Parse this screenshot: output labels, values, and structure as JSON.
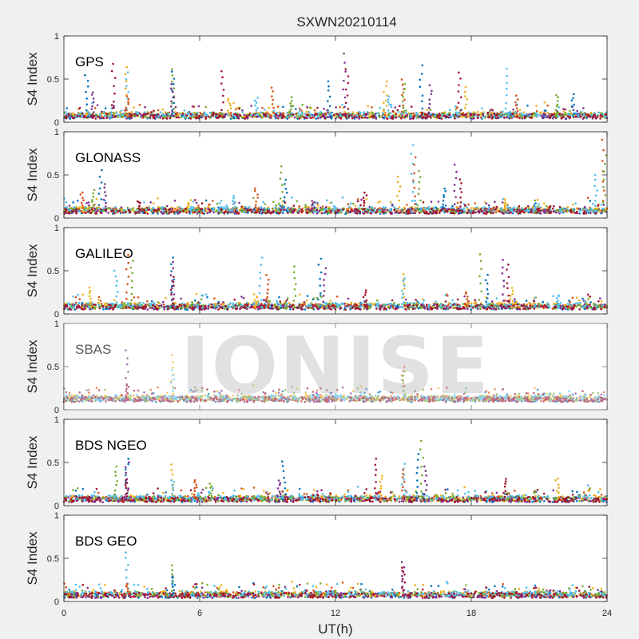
{
  "figure": {
    "title": "SXWN20210114",
    "xlabel": "UT(h)",
    "watermark": "IONISE"
  },
  "chart_data": [
    {
      "type": "scatter",
      "panel_label": "GPS",
      "ylabel": "S4 Index",
      "xlim": [
        0,
        24
      ],
      "ylim": [
        0,
        1
      ],
      "yticks": [
        0,
        0.5,
        1
      ],
      "xticks": [
        0,
        6,
        12,
        18,
        24
      ],
      "baseline": 0.07,
      "spikes": [
        [
          1,
          0.55
        ],
        [
          1.3,
          0.35
        ],
        [
          2.2,
          0.68
        ],
        [
          2.8,
          0.64
        ],
        [
          2.8,
          0.57
        ],
        [
          2.8,
          0.3
        ],
        [
          4.8,
          0.62
        ],
        [
          4.8,
          0.58
        ],
        [
          4.8,
          0.45
        ],
        [
          7,
          0.6
        ],
        [
          7.3,
          0.28
        ],
        [
          8.5,
          0.28
        ],
        [
          9.2,
          0.4
        ],
        [
          10,
          0.28
        ],
        [
          11.7,
          0.48
        ],
        [
          12.4,
          0.8
        ],
        [
          12.5,
          0.62
        ],
        [
          14.2,
          0.48
        ],
        [
          14.4,
          0.3
        ],
        [
          15,
          0.5
        ],
        [
          15,
          0.45
        ],
        [
          15.8,
          0.65
        ],
        [
          16.2,
          0.42
        ],
        [
          17.5,
          0.58
        ],
        [
          17.8,
          0.4
        ],
        [
          19.5,
          0.62
        ],
        [
          20,
          0.3
        ],
        [
          21.8,
          0.32
        ],
        [
          22.5,
          0.32
        ]
      ],
      "xtick_labels_visible": false
    },
    {
      "type": "scatter",
      "panel_label": "GLONASS",
      "ylabel": "S4 Index",
      "xlim": [
        0,
        24
      ],
      "ylim": [
        0,
        1
      ],
      "yticks": [
        0,
        0.5,
        1
      ],
      "xticks": [
        0,
        6,
        12,
        18,
        24
      ],
      "baseline": 0.08,
      "spikes": [
        [
          0.8,
          0.3
        ],
        [
          1.3,
          0.32
        ],
        [
          1.6,
          0.55
        ],
        [
          1.8,
          0.4
        ],
        [
          3.3,
          0.2
        ],
        [
          5.5,
          0.18
        ],
        [
          7.5,
          0.25
        ],
        [
          8.5,
          0.35
        ],
        [
          9.6,
          0.6
        ],
        [
          9.8,
          0.45
        ],
        [
          11,
          0.2
        ],
        [
          13.3,
          0.3
        ],
        [
          14.8,
          0.48
        ],
        [
          15.4,
          0.85
        ],
        [
          15.5,
          0.7
        ],
        [
          15.7,
          0.55
        ],
        [
          16.8,
          0.35
        ],
        [
          17.3,
          0.62
        ],
        [
          17.5,
          0.45
        ],
        [
          19.5,
          0.22
        ],
        [
          23.5,
          0.5
        ],
        [
          23.8,
          0.9
        ],
        [
          23.9,
          0.72
        ]
      ],
      "xtick_labels_visible": false
    },
    {
      "type": "scatter",
      "panel_label": "GALILEO",
      "ylabel": "S4 Index",
      "xlim": [
        0,
        24
      ],
      "ylim": [
        0,
        1
      ],
      "yticks": [
        0,
        0.5,
        1
      ],
      "xticks": [
        0,
        6,
        12,
        18,
        24
      ],
      "baseline": 0.08,
      "spikes": [
        [
          1.2,
          0.3
        ],
        [
          2.3,
          0.5
        ],
        [
          2.8,
          0.68
        ],
        [
          3,
          0.62
        ],
        [
          4.8,
          0.65
        ],
        [
          4.8,
          0.6
        ],
        [
          4.8,
          0.42
        ],
        [
          8.5,
          0.2
        ],
        [
          8.7,
          0.65
        ],
        [
          9,
          0.45
        ],
        [
          10.2,
          0.55
        ],
        [
          11.3,
          0.65
        ],
        [
          11.5,
          0.52
        ],
        [
          13.3,
          0.28
        ],
        [
          15,
          0.45
        ],
        [
          15,
          0.42
        ],
        [
          17.8,
          0.25
        ],
        [
          18.4,
          0.7
        ],
        [
          18.7,
          0.45
        ],
        [
          19.4,
          0.62
        ],
        [
          19.6,
          0.58
        ],
        [
          19.8,
          0.3
        ],
        [
          21.8,
          0.22
        ]
      ],
      "xtick_labels_visible": false
    },
    {
      "type": "scatter",
      "panel_label": "SBAS",
      "ylabel": "S4 Index",
      "xlim": [
        0,
        24
      ],
      "ylim": [
        0,
        1
      ],
      "yticks": [
        0,
        0.5,
        1
      ],
      "xticks": [
        0,
        6,
        12,
        18,
        24
      ],
      "baseline": 0.12,
      "spikes": [
        [
          2.8,
          0.68
        ],
        [
          2.8,
          0.3
        ],
        [
          4.8,
          0.63
        ],
        [
          4.8,
          0.45
        ],
        [
          15,
          0.5
        ],
        [
          15,
          0.45
        ]
      ],
      "xtick_labels_visible": false
    },
    {
      "type": "scatter",
      "panel_label": "BDS NGEO",
      "ylabel": "S4 Index",
      "xlim": [
        0,
        24
      ],
      "ylim": [
        0,
        1
      ],
      "yticks": [
        0,
        0.5,
        1
      ],
      "xticks": [
        0,
        6,
        12,
        18,
        24
      ],
      "baseline": 0.07,
      "spikes": [
        [
          2.3,
          0.45
        ],
        [
          2.8,
          0.55
        ],
        [
          2.8,
          0.5
        ],
        [
          2.8,
          0.3
        ],
        [
          4.8,
          0.48
        ],
        [
          4.8,
          0.3
        ],
        [
          5.8,
          0.3
        ],
        [
          6.5,
          0.25
        ],
        [
          9.7,
          0.52
        ],
        [
          9.5,
          0.3
        ],
        [
          13.8,
          0.55
        ],
        [
          14,
          0.35
        ],
        [
          15,
          0.48
        ],
        [
          15,
          0.42
        ],
        [
          15.8,
          0.75
        ],
        [
          15.6,
          0.6
        ],
        [
          16,
          0.45
        ],
        [
          19.5,
          0.32
        ],
        [
          21.8,
          0.32
        ]
      ],
      "xtick_labels_visible": false
    },
    {
      "type": "scatter",
      "panel_label": "BDS GEO",
      "ylabel": "S4 Index",
      "xlim": [
        0,
        24
      ],
      "ylim": [
        0,
        1
      ],
      "yticks": [
        0,
        0.5,
        1
      ],
      "xticks": [
        0,
        6,
        12,
        18,
        24
      ],
      "baseline": 0.07,
      "spikes": [
        [
          2.8,
          0.57
        ],
        [
          2.8,
          0.2
        ],
        [
          4.8,
          0.42
        ],
        [
          4.8,
          0.3
        ],
        [
          15,
          0.45
        ],
        [
          15,
          0.4
        ]
      ],
      "xtick_labels_visible": true,
      "xtick_labels": [
        "0",
        "6",
        "12",
        "18",
        "24"
      ]
    }
  ],
  "series_colors": [
    "#0072BD",
    "#D95319",
    "#EDB120",
    "#7E2F8E",
    "#77AC30",
    "#4DBEEE",
    "#A2142F"
  ]
}
